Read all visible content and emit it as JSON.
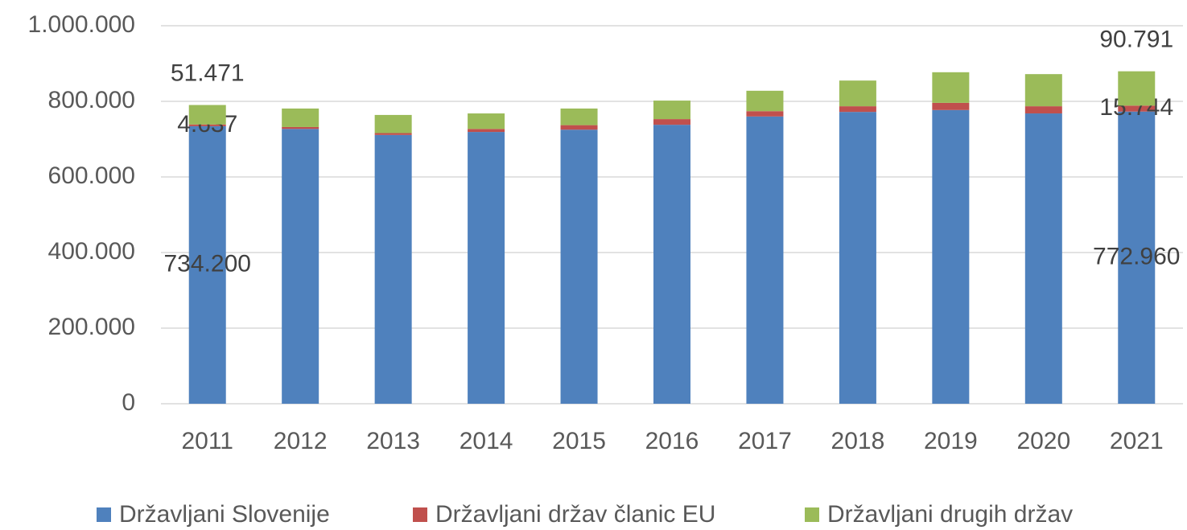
{
  "chart_data": {
    "type": "stacked_bar",
    "categories": [
      "2011",
      "2012",
      "2013",
      "2014",
      "2015",
      "2016",
      "2017",
      "2018",
      "2019",
      "2020",
      "2021"
    ],
    "series": [
      {
        "name": "Državljani Slovenije",
        "color": "#4f81bd",
        "values": [
          734200,
          727000,
          711000,
          719000,
          725000,
          738000,
          760000,
          772000,
          777000,
          768000,
          772960
        ],
        "value_labels": [
          "734.200",
          null,
          null,
          null,
          null,
          null,
          null,
          null,
          null,
          null,
          "772.960"
        ]
      },
      {
        "name": "Državljani držav članic EU",
        "color": "#c0504d",
        "values": [
          4637,
          5000,
          5000,
          8000,
          12000,
          15000,
          14000,
          15000,
          19000,
          19000,
          15744
        ],
        "value_labels": [
          "4.637",
          null,
          null,
          null,
          null,
          null,
          null,
          null,
          null,
          null,
          "15.744"
        ]
      },
      {
        "name": "Državljani drugih držav",
        "color": "#9bbb59",
        "values": [
          51471,
          49000,
          48000,
          41000,
          44000,
          49000,
          54000,
          68000,
          81000,
          85000,
          90791
        ],
        "value_labels": [
          "51.471",
          null,
          null,
          null,
          null,
          null,
          null,
          null,
          null,
          null,
          "90.791"
        ]
      }
    ],
    "ylim": [
      0,
      1000000
    ],
    "yticks": [
      0,
      {
        "value": 200000,
        "label": "200.000"
      },
      {
        "value": 400000,
        "label": "400.000"
      },
      {
        "value": 600000,
        "label": "600.000"
      },
      {
        "value": 800000,
        "label": "800.000"
      },
      {
        "value": 1000000,
        "label": "1.000.000"
      }
    ],
    "grid": true,
    "legend": "bottom"
  }
}
